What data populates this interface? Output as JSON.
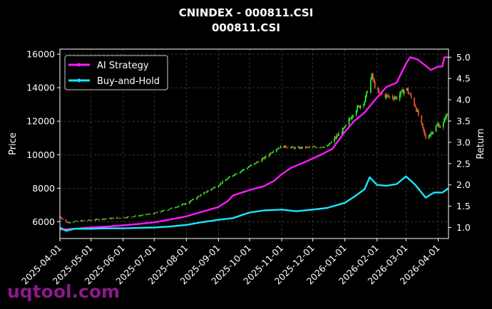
{
  "chart_data": {
    "type": "line",
    "title": "CNINDEX - 000811.CSI",
    "subtitle": "000811.CSI",
    "ylabel": "Price",
    "y2label": "Return",
    "ylim": [
      5000,
      16300
    ],
    "y2lim": [
      0.74,
      5.19
    ],
    "yticks": [
      6000,
      8000,
      10000,
      12000,
      14000,
      16000
    ],
    "y2ticks": [
      1.0,
      1.5,
      2.0,
      2.5,
      3.0,
      3.5,
      4.0,
      4.5,
      5.0
    ],
    "xrange": [
      "2025-04-01",
      "2026-04-11"
    ],
    "xticks": [
      "2025-04-01",
      "2025-05-01",
      "2025-06-01",
      "2025-07-01",
      "2025-08-01",
      "2025-09-01",
      "2025-10-01",
      "2025-11-01",
      "2025-12-01",
      "2026-01-01",
      "2026-02-01",
      "2026-03-01",
      "2026-04-01"
    ],
    "grid": true,
    "legend_position": "top-left",
    "watermark": "uqtool.com",
    "colors": {
      "ai": "#ff1aff",
      "bh": "#1ae6ff",
      "up": "#33ff33",
      "down": "#ff5533"
    },
    "series": [
      {
        "name": "AI Strategy",
        "axis": "return",
        "points": [
          [
            "2025-04-01",
            0.95
          ],
          [
            "2025-04-15",
            0.97
          ],
          [
            "2025-05-01",
            1.0
          ],
          [
            "2025-05-15",
            1.02
          ],
          [
            "2025-06-01",
            1.05
          ],
          [
            "2025-06-15",
            1.08
          ],
          [
            "2025-07-01",
            1.12
          ],
          [
            "2025-07-15",
            1.18
          ],
          [
            "2025-08-01",
            1.26
          ],
          [
            "2025-08-15",
            1.36
          ],
          [
            "2025-09-01",
            1.48
          ],
          [
            "2025-09-10",
            1.62
          ],
          [
            "2025-09-15",
            1.75
          ],
          [
            "2025-09-25",
            1.83
          ],
          [
            "2025-10-01",
            1.88
          ],
          [
            "2025-10-15",
            1.97
          ],
          [
            "2025-10-25",
            2.1
          ],
          [
            "2025-11-01",
            2.25
          ],
          [
            "2025-11-10",
            2.4
          ],
          [
            "2025-11-20",
            2.5
          ],
          [
            "2025-12-01",
            2.62
          ],
          [
            "2025-12-10",
            2.72
          ],
          [
            "2025-12-20",
            2.85
          ],
          [
            "2026-01-01",
            3.25
          ],
          [
            "2026-01-10",
            3.5
          ],
          [
            "2026-01-20",
            3.7
          ],
          [
            "2026-01-25",
            3.85
          ],
          [
            "2026-02-01",
            4.05
          ],
          [
            "2026-02-10",
            4.3
          ],
          [
            "2026-02-20",
            4.4
          ],
          [
            "2026-03-01",
            4.85
          ],
          [
            "2026-03-05",
            5.0
          ],
          [
            "2026-03-12",
            4.95
          ],
          [
            "2026-03-20",
            4.8
          ],
          [
            "2026-03-25",
            4.7
          ],
          [
            "2026-04-01",
            4.78
          ],
          [
            "2026-04-05",
            4.78
          ],
          [
            "2026-04-07",
            5.0
          ],
          [
            "2026-04-11",
            5.0
          ]
        ]
      },
      {
        "name": "Buy-and-Hold",
        "axis": "return",
        "points": [
          [
            "2025-04-01",
            1.0
          ],
          [
            "2025-04-07",
            0.92
          ],
          [
            "2025-04-15",
            0.97
          ],
          [
            "2025-05-01",
            0.97
          ],
          [
            "2025-05-15",
            0.98
          ],
          [
            "2025-06-01",
            0.98
          ],
          [
            "2025-06-15",
            0.99
          ],
          [
            "2025-07-01",
            1.0
          ],
          [
            "2025-07-15",
            1.02
          ],
          [
            "2025-08-01",
            1.06
          ],
          [
            "2025-08-15",
            1.12
          ],
          [
            "2025-09-01",
            1.18
          ],
          [
            "2025-09-15",
            1.22
          ],
          [
            "2025-10-01",
            1.35
          ],
          [
            "2025-10-15",
            1.4
          ],
          [
            "2025-11-01",
            1.42
          ],
          [
            "2025-11-15",
            1.38
          ],
          [
            "2025-12-01",
            1.42
          ],
          [
            "2025-12-15",
            1.46
          ],
          [
            "2026-01-01",
            1.58
          ],
          [
            "2026-01-10",
            1.72
          ],
          [
            "2026-01-20",
            1.9
          ],
          [
            "2026-01-25",
            2.18
          ],
          [
            "2026-02-01",
            2.0
          ],
          [
            "2026-02-10",
            1.98
          ],
          [
            "2026-02-20",
            2.02
          ],
          [
            "2026-03-01",
            2.2
          ],
          [
            "2026-03-10",
            2.0
          ],
          [
            "2026-03-20",
            1.7
          ],
          [
            "2026-03-28",
            1.82
          ],
          [
            "2026-04-05",
            1.82
          ],
          [
            "2026-04-11",
            1.92
          ]
        ]
      },
      {
        "name": "Price",
        "axis": "price",
        "points": [
          [
            "2025-04-01",
            6300
          ],
          [
            "2025-04-08",
            5950
          ],
          [
            "2025-04-20",
            6050
          ],
          [
            "2025-05-01",
            6100
          ],
          [
            "2025-05-15",
            6180
          ],
          [
            "2025-06-01",
            6250
          ],
          [
            "2025-06-15",
            6350
          ],
          [
            "2025-07-01",
            6500
          ],
          [
            "2025-07-15",
            6750
          ],
          [
            "2025-08-01",
            7100
          ],
          [
            "2025-08-15",
            7600
          ],
          [
            "2025-09-01",
            8200
          ],
          [
            "2025-09-15",
            8800
          ],
          [
            "2025-10-01",
            9300
          ],
          [
            "2025-10-15",
            9800
          ],
          [
            "2025-10-25",
            10300
          ],
          [
            "2025-11-01",
            10500
          ],
          [
            "2025-11-15",
            10400
          ],
          [
            "2025-12-01",
            10450
          ],
          [
            "2025-12-15",
            10500
          ],
          [
            "2026-01-01",
            11600
          ],
          [
            "2026-01-10",
            12600
          ],
          [
            "2026-01-20",
            13200
          ],
          [
            "2026-01-27",
            14700
          ],
          [
            "2026-02-01",
            13700
          ],
          [
            "2026-02-10",
            13500
          ],
          [
            "2026-02-20",
            13400
          ],
          [
            "2026-03-01",
            14000
          ],
          [
            "2026-03-10",
            12900
          ],
          [
            "2026-03-20",
            11000
          ],
          [
            "2026-03-25",
            11300
          ],
          [
            "2026-04-01",
            11800
          ],
          [
            "2026-04-05",
            11600
          ],
          [
            "2026-04-08",
            12300
          ],
          [
            "2026-04-11",
            12400
          ]
        ]
      }
    ]
  }
}
